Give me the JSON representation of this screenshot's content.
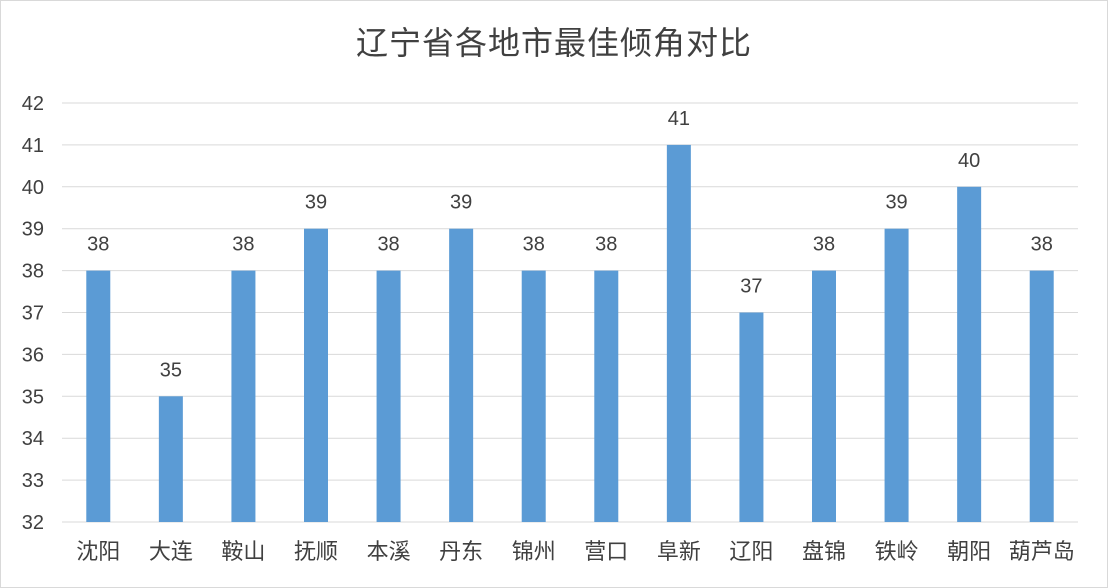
{
  "chart_data": {
    "type": "bar",
    "title": "辽宁省各地市最佳倾角对比",
    "xlabel": "",
    "ylabel": "",
    "categories": [
      "沈阳",
      "大连",
      "鞍山",
      "抚顺",
      "本溪",
      "丹东",
      "锦州",
      "营口",
      "阜新",
      "辽阳",
      "盘锦",
      "铁岭",
      "朝阳",
      "葫芦岛"
    ],
    "values": [
      38,
      35,
      38,
      39,
      38,
      39,
      38,
      38,
      41,
      37,
      38,
      39,
      40,
      38
    ],
    "ylim": [
      32,
      42
    ],
    "yticks": [
      "32",
      "33",
      "34",
      "35",
      "36",
      "37",
      "38",
      "39",
      "40",
      "41",
      "42"
    ],
    "grid": true,
    "legend": "none",
    "data_labels": true,
    "colors": {
      "bar": "#5b9bd5",
      "grid": "#d9d9d9",
      "text": "#404040"
    }
  }
}
